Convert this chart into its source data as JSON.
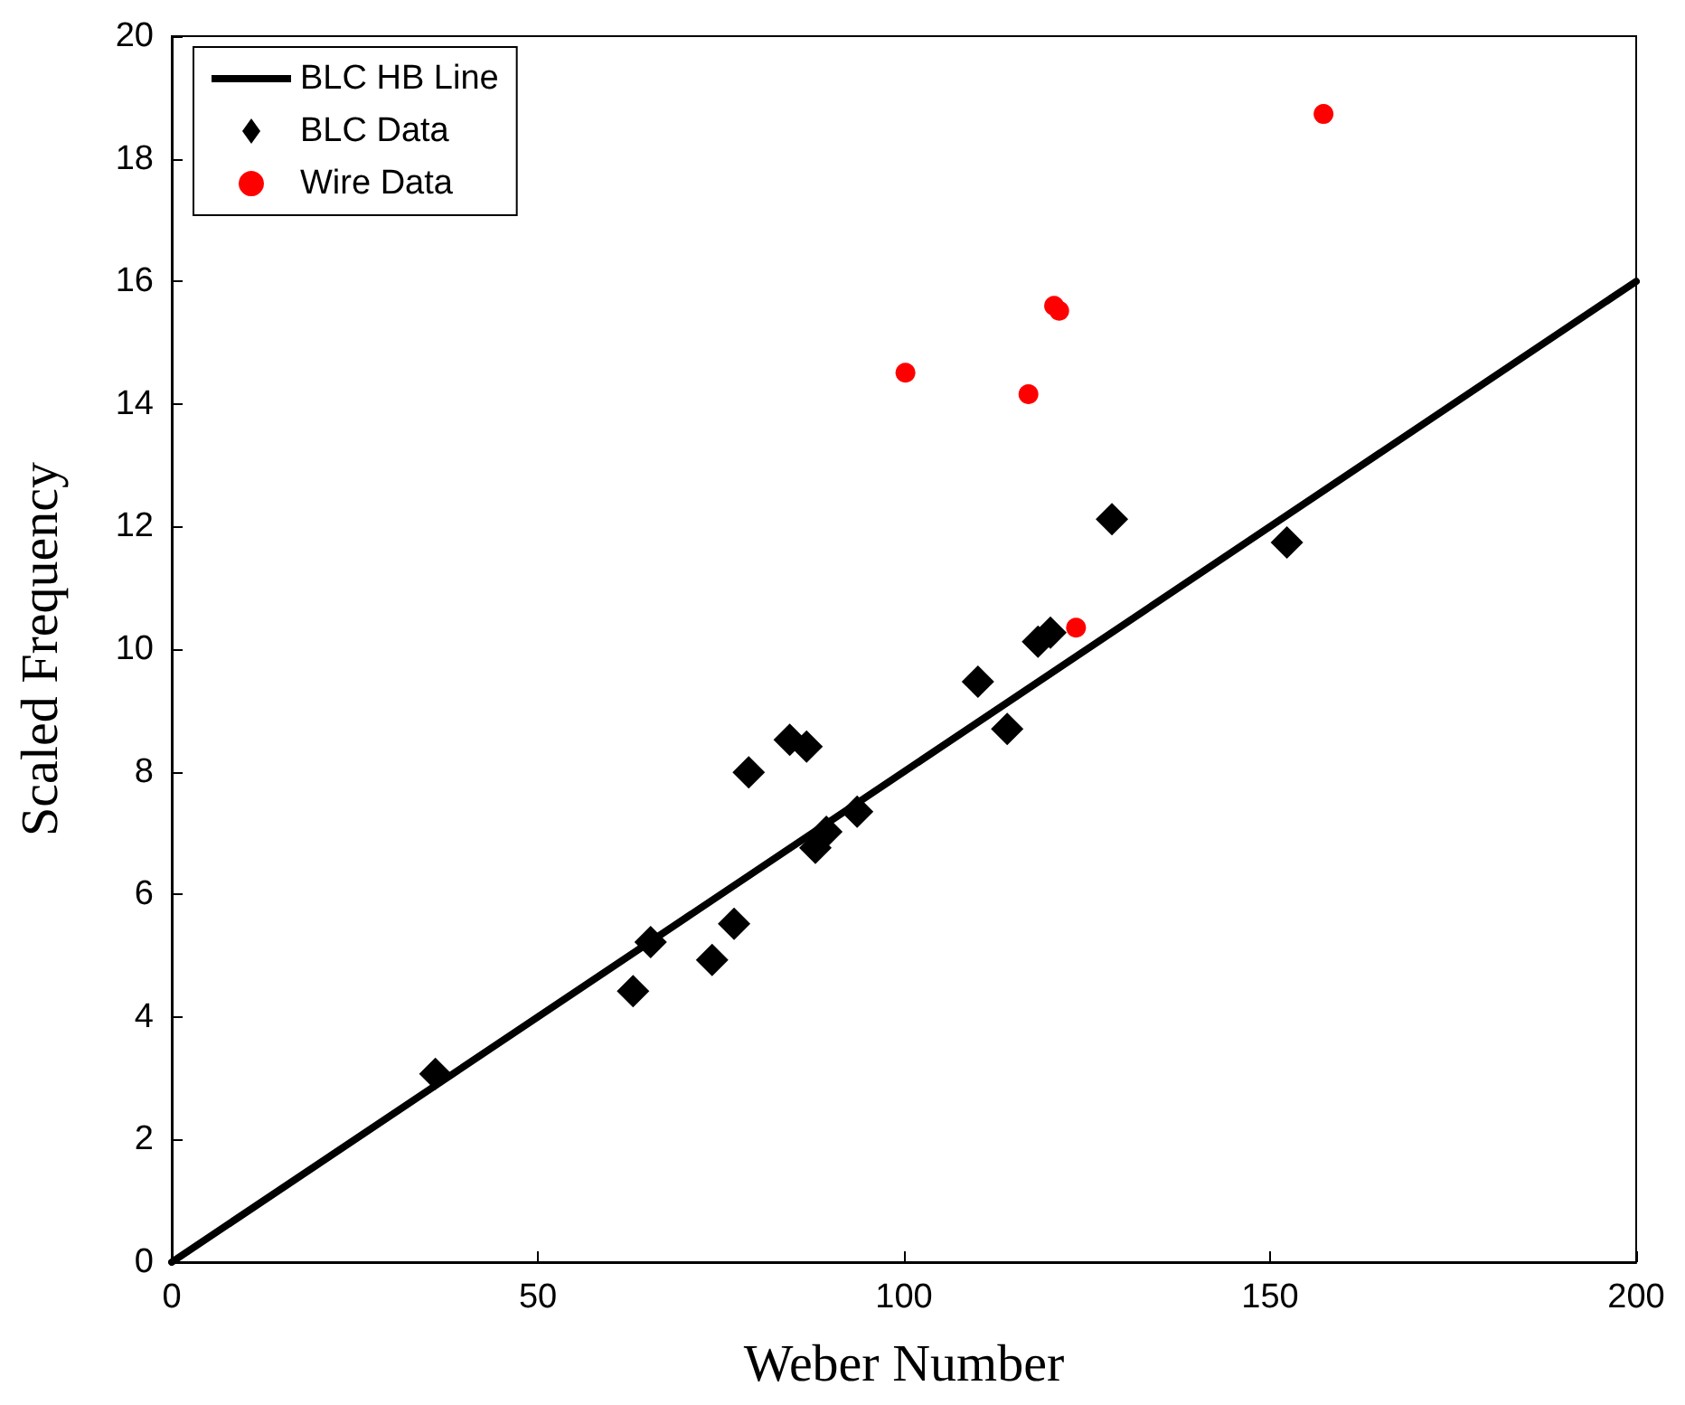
{
  "chart_data": {
    "type": "scatter",
    "xlabel": "Weber Number",
    "ylabel": "Scaled Frequency",
    "xlim": [
      0,
      200
    ],
    "xticks": [
      0,
      50,
      100,
      150,
      200
    ],
    "ylim": [
      0,
      20
    ],
    "yticks": [
      0,
      2,
      4,
      6,
      8,
      10,
      12,
      14,
      16,
      18,
      20
    ],
    "grid": false,
    "legend": "top left",
    "series": [
      {
        "name": "BLC HB Line",
        "type": "line",
        "color": "#000000",
        "marker": "none",
        "line_style": "solid",
        "x": [
          0,
          200
        ],
        "values": [
          0,
          16
        ]
      },
      {
        "name": "BLC Data",
        "type": "scatter",
        "color": "#000000",
        "marker": "diamond",
        "x": [
          36.0,
          63.0,
          65.4,
          73.8,
          76.8,
          78.8,
          84.4,
          86.7,
          87.9,
          89.4,
          93.6,
          110.1,
          114.1,
          118.3,
          120.0,
          128.4,
          152.3
        ],
        "values": [
          3.07,
          4.42,
          5.22,
          4.93,
          5.52,
          7.99,
          8.52,
          8.41,
          6.76,
          7.02,
          7.35,
          9.47,
          8.7,
          10.12,
          10.27,
          12.12,
          11.74
        ]
      },
      {
        "name": "Wire Data",
        "type": "scatter",
        "color": "#ff0000",
        "marker": "circle",
        "x": [
          100.2,
          117.0,
          120.5,
          121.2,
          123.5,
          157.3
        ],
        "values": [
          14.51,
          14.16,
          15.6,
          15.52,
          10.35,
          18.73
        ]
      }
    ]
  }
}
